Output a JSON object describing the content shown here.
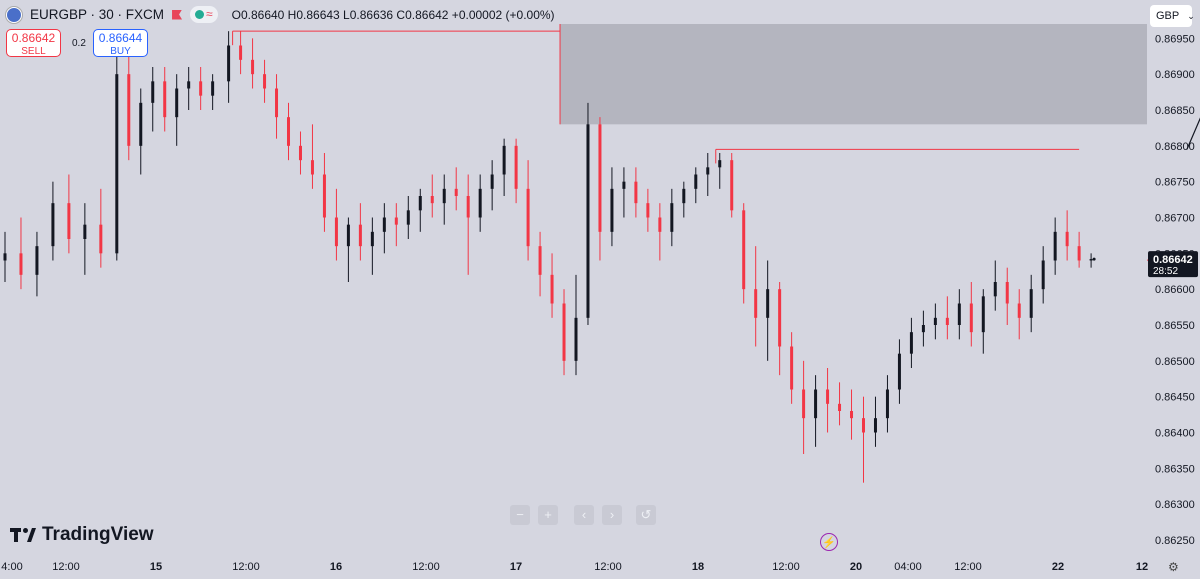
{
  "header": {
    "symbol_line": "EURGBP · 30 · FXCM",
    "ohlc": "O0.86640 H0.86643 L0.86636 C0.86642 +0.00002 (+0.00%)"
  },
  "trade": {
    "sell_price": "0.86642",
    "sell_label": "SELL",
    "buy_price": "0.86644",
    "buy_label": "BUY",
    "spread": "0.2"
  },
  "currency_button": {
    "label": "GBP",
    "icon": "chevron-down-icon"
  },
  "brand": {
    "name": "TradingView"
  },
  "chart_data": {
    "type": "candlestick",
    "symbol": "EURGBP",
    "interval": "30",
    "source": "FXCM",
    "ylim": [
      0.86225,
      0.87
    ],
    "y_ticks": [
      0.8695,
      0.869,
      0.8685,
      0.868,
      0.8675,
      0.867,
      0.8665,
      0.866,
      0.8655,
      0.865,
      0.8645,
      0.864,
      0.8635,
      0.863,
      0.8625
    ],
    "y_tick_labels": [
      "0.86950",
      "0.86900",
      "0.86850",
      "0.86800",
      "0.86750",
      "0.86700",
      "0.86650",
      "0.86600",
      "0.86550",
      "0.86500",
      "0.86450",
      "0.86400",
      "0.86350",
      "0.86300",
      "0.86250"
    ],
    "x_tick_labels": [
      "4:00",
      "12:00",
      "15",
      "12:00",
      "16",
      "12:00",
      "17",
      "12:00",
      "18",
      "12:00",
      "20",
      "04:00",
      "12:00",
      "22",
      "12"
    ],
    "last_price": {
      "value": 0.86642,
      "label": "0.86642",
      "countdown": "28:52"
    },
    "bar_index_range": [
      0,
      286
    ],
    "candles": [
      [
        0,
        0.8664,
        0.8668,
        0.8661,
        0.8665
      ],
      [
        4,
        0.8665,
        0.867,
        0.866,
        0.8662
      ],
      [
        8,
        0.8662,
        0.8668,
        0.8659,
        0.8666
      ],
      [
        12,
        0.8666,
        0.8675,
        0.8664,
        0.8672
      ],
      [
        16,
        0.8672,
        0.8676,
        0.8665,
        0.8667
      ],
      [
        20,
        0.8667,
        0.8672,
        0.8662,
        0.8669
      ],
      [
        24,
        0.8669,
        0.8674,
        0.8663,
        0.8665
      ],
      [
        28,
        0.8665,
        0.8694,
        0.8664,
        0.869
      ],
      [
        31,
        0.869,
        0.8693,
        0.8678,
        0.868
      ],
      [
        34,
        0.868,
        0.8688,
        0.8676,
        0.8686
      ],
      [
        37,
        0.8686,
        0.8691,
        0.8682,
        0.8689
      ],
      [
        40,
        0.8689,
        0.8691,
        0.8682,
        0.8684
      ],
      [
        43,
        0.8684,
        0.869,
        0.868,
        0.8688
      ],
      [
        46,
        0.8688,
        0.8691,
        0.8685,
        0.8689
      ],
      [
        49,
        0.8689,
        0.8691,
        0.8685,
        0.8687
      ],
      [
        52,
        0.8687,
        0.869,
        0.8685,
        0.8689
      ],
      [
        56,
        0.8689,
        0.8696,
        0.8686,
        0.8694
      ],
      [
        59,
        0.8694,
        0.8696,
        0.869,
        0.8692
      ],
      [
        62,
        0.8692,
        0.8695,
        0.8688,
        0.869
      ],
      [
        65,
        0.869,
        0.8692,
        0.8686,
        0.8688
      ],
      [
        68,
        0.8688,
        0.869,
        0.8681,
        0.8684
      ],
      [
        71,
        0.8684,
        0.8686,
        0.8678,
        0.868
      ],
      [
        74,
        0.868,
        0.8682,
        0.8676,
        0.8678
      ],
      [
        77,
        0.8678,
        0.8683,
        0.8674,
        0.8676
      ],
      [
        80,
        0.8676,
        0.8679,
        0.8668,
        0.867
      ],
      [
        83,
        0.867,
        0.8674,
        0.8664,
        0.8666
      ],
      [
        86,
        0.8666,
        0.867,
        0.8661,
        0.8669
      ],
      [
        89,
        0.8669,
        0.8672,
        0.8664,
        0.8666
      ],
      [
        92,
        0.8666,
        0.867,
        0.8662,
        0.8668
      ],
      [
        95,
        0.8668,
        0.8672,
        0.8665,
        0.867
      ],
      [
        98,
        0.867,
        0.8672,
        0.8666,
        0.8669
      ],
      [
        101,
        0.8669,
        0.8673,
        0.8667,
        0.8671
      ],
      [
        104,
        0.8671,
        0.8674,
        0.8668,
        0.8673
      ],
      [
        107,
        0.8673,
        0.8676,
        0.867,
        0.8672
      ],
      [
        110,
        0.8672,
        0.8676,
        0.8669,
        0.8674
      ],
      [
        113,
        0.8674,
        0.8677,
        0.8671,
        0.8673
      ],
      [
        116,
        0.8673,
        0.8676,
        0.8662,
        0.867
      ],
      [
        119,
        0.867,
        0.8676,
        0.8668,
        0.8674
      ],
      [
        122,
        0.8674,
        0.8678,
        0.8671,
        0.8676
      ],
      [
        125,
        0.8676,
        0.8681,
        0.8673,
        0.868
      ],
      [
        128,
        0.868,
        0.8681,
        0.8672,
        0.8674
      ],
      [
        131,
        0.8674,
        0.8678,
        0.8664,
        0.8666
      ],
      [
        134,
        0.8666,
        0.8668,
        0.8659,
        0.8662
      ],
      [
        137,
        0.8662,
        0.8665,
        0.8656,
        0.8658
      ],
      [
        140,
        0.8658,
        0.866,
        0.8648,
        0.865
      ],
      [
        143,
        0.865,
        0.8662,
        0.8648,
        0.8656
      ],
      [
        146,
        0.8656,
        0.8686,
        0.8655,
        0.8683
      ],
      [
        149,
        0.8683,
        0.8684,
        0.8664,
        0.8668
      ],
      [
        152,
        0.8668,
        0.8677,
        0.8666,
        0.8674
      ],
      [
        155,
        0.8674,
        0.8677,
        0.867,
        0.8675
      ],
      [
        158,
        0.8675,
        0.8677,
        0.867,
        0.8672
      ],
      [
        161,
        0.8672,
        0.8674,
        0.8668,
        0.867
      ],
      [
        164,
        0.867,
        0.8672,
        0.8664,
        0.8668
      ],
      [
        167,
        0.8668,
        0.8674,
        0.8666,
        0.8672
      ],
      [
        170,
        0.8672,
        0.8675,
        0.867,
        0.8674
      ],
      [
        173,
        0.8674,
        0.8677,
        0.8672,
        0.8676
      ],
      [
        176,
        0.8676,
        0.8679,
        0.8673,
        0.8677
      ],
      [
        179,
        0.8677,
        0.8679,
        0.8674,
        0.8678
      ],
      [
        182,
        0.8678,
        0.8679,
        0.867,
        0.8671
      ],
      [
        185,
        0.8671,
        0.8672,
        0.8658,
        0.866
      ],
      [
        188,
        0.866,
        0.8666,
        0.8652,
        0.8656
      ],
      [
        191,
        0.8656,
        0.8664,
        0.865,
        0.866
      ],
      [
        194,
        0.866,
        0.8661,
        0.8648,
        0.8652
      ],
      [
        197,
        0.8652,
        0.8654,
        0.8644,
        0.8646
      ],
      [
        200,
        0.8646,
        0.865,
        0.8637,
        0.8642
      ],
      [
        203,
        0.8642,
        0.8648,
        0.8638,
        0.8646
      ],
      [
        206,
        0.8646,
        0.8649,
        0.864,
        0.8644
      ],
      [
        209,
        0.8644,
        0.8647,
        0.8641,
        0.8643
      ],
      [
        212,
        0.8643,
        0.8646,
        0.8639,
        0.8642
      ],
      [
        215,
        0.8642,
        0.8645,
        0.8633,
        0.864
      ],
      [
        218,
        0.864,
        0.8645,
        0.8638,
        0.8642
      ],
      [
        221,
        0.8642,
        0.8648,
        0.864,
        0.8646
      ],
      [
        224,
        0.8646,
        0.8653,
        0.8644,
        0.8651
      ],
      [
        227,
        0.8651,
        0.8656,
        0.8649,
        0.8654
      ],
      [
        230,
        0.8654,
        0.8657,
        0.8652,
        0.8655
      ],
      [
        233,
        0.8655,
        0.8658,
        0.8653,
        0.8656
      ],
      [
        236,
        0.8656,
        0.8659,
        0.8653,
        0.8655
      ],
      [
        239,
        0.8655,
        0.866,
        0.8653,
        0.8658
      ],
      [
        242,
        0.8658,
        0.8661,
        0.8652,
        0.8654
      ],
      [
        245,
        0.8654,
        0.866,
        0.8651,
        0.8659
      ],
      [
        248,
        0.8659,
        0.8664,
        0.8657,
        0.8661
      ],
      [
        251,
        0.8661,
        0.8663,
        0.8655,
        0.8658
      ],
      [
        254,
        0.8658,
        0.866,
        0.8653,
        0.8656
      ],
      [
        257,
        0.8656,
        0.8662,
        0.8654,
        0.866
      ],
      [
        260,
        0.866,
        0.8666,
        0.8658,
        0.8664
      ],
      [
        263,
        0.8664,
        0.867,
        0.8662,
        0.8668
      ],
      [
        266,
        0.8668,
        0.8671,
        0.8664,
        0.8666
      ],
      [
        269,
        0.8666,
        0.8668,
        0.8663,
        0.8664
      ],
      [
        272,
        0.8664,
        0.8665,
        0.8663,
        0.86642
      ]
    ],
    "supply_zone": {
      "y_top": 0.8697,
      "y_bottom": 0.8683,
      "x_start": 139,
      "x_end": 286
    },
    "level_lines": [
      {
        "y": 0.8696,
        "x_start": 57,
        "x_end": 139
      },
      {
        "y": 0.86795,
        "x_start": 178,
        "x_end": 269
      }
    ],
    "projection_arrow": [
      [
        296,
        0.86795
      ],
      [
        301,
        0.8686
      ],
      [
        322,
        0.8662
      ]
    ],
    "colors": {
      "up": "#131722",
      "down": "#f23645",
      "zone": "#b4b5bf",
      "level": "#f23645",
      "background": "#d5d6e0"
    }
  }
}
